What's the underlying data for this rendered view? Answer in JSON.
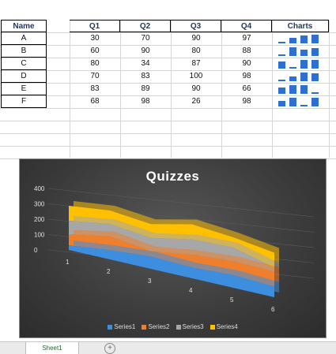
{
  "table": {
    "headers": [
      "Name",
      "Q1",
      "Q2",
      "Q3",
      "Q4",
      "Charts"
    ],
    "rows": [
      {
        "name": "A",
        "q": [
          30,
          70,
          90,
          97
        ]
      },
      {
        "name": "B",
        "q": [
          60,
          90,
          80,
          88
        ]
      },
      {
        "name": "C",
        "q": [
          80,
          34,
          87,
          90
        ]
      },
      {
        "name": "D",
        "q": [
          70,
          83,
          100,
          98
        ]
      },
      {
        "name": "E",
        "q": [
          83,
          89,
          90,
          66
        ]
      },
      {
        "name": "F",
        "q": [
          68,
          98,
          26,
          98
        ]
      }
    ]
  },
  "colors": {
    "sparkline": "#2f6fd0",
    "header_text": "#1f3864"
  },
  "chart_data": {
    "type": "area",
    "title": "Quizzes",
    "x": [
      1,
      2,
      3,
      4,
      5,
      6
    ],
    "ylim": [
      0,
      400
    ],
    "yticks": [
      0,
      100,
      200,
      300,
      400
    ],
    "series": [
      {
        "name": "Series1",
        "color": "#3e8ee0",
        "values": [
          30,
          60,
          80,
          70,
          83,
          68
        ]
      },
      {
        "name": "Series2",
        "color": "#ee7f2d",
        "values": [
          70,
          90,
          34,
          83,
          89,
          98
        ]
      },
      {
        "name": "Series3",
        "color": "#a7a7a7",
        "values": [
          90,
          80,
          87,
          100,
          90,
          26
        ]
      },
      {
        "name": "Series4",
        "color": "#ffc000",
        "values": [
          97,
          88,
          90,
          98,
          66,
          98
        ]
      }
    ],
    "legend_position": "bottom",
    "style": "3d-area"
  },
  "sheet_tab": {
    "label": "Sheet1",
    "add_label": "+"
  }
}
